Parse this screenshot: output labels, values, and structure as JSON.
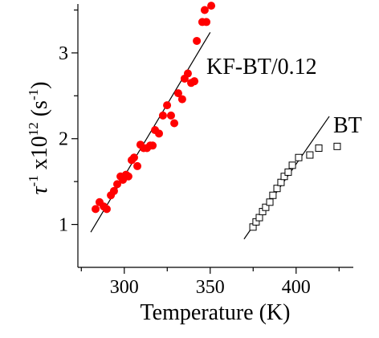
{
  "chart_data": {
    "type": "scatter",
    "x_label": "Temperature (K)",
    "y_label": [
      "τ",
      "-1",
      " x10",
      "12",
      " (s",
      "-1",
      ")"
    ],
    "xlim": [
      273,
      433
    ],
    "ylim": [
      0.5,
      3.57
    ],
    "xticks": [
      300,
      350,
      400
    ],
    "xminorticks": [
      275,
      325,
      375,
      425
    ],
    "yticks": [
      1,
      2,
      3
    ],
    "yminorticks": [
      1.5,
      2.5,
      3.5
    ],
    "series": [
      {
        "name": "KF-BT/0.12",
        "color": "#ff0000",
        "marker": "circle",
        "x": [
          283.3,
          285.6,
          288.0,
          289.8,
          292.2,
          294.0,
          295.9,
          297.8,
          299.2,
          301.0,
          302.4,
          304.3,
          305.7,
          307.6,
          309.4,
          311.3,
          313.2,
          315.1,
          316.5,
          317.9,
          320.2,
          322.5,
          324.9,
          327.2,
          329.1,
          331.4,
          333.7,
          335.1,
          337.0,
          338.9,
          340.8,
          342.2,
          345.4,
          346.8,
          347.8,
          350.6
        ],
        "values": [
          1.18,
          1.26,
          1.21,
          1.18,
          1.34,
          1.39,
          1.47,
          1.56,
          1.52,
          1.58,
          1.56,
          1.75,
          1.78,
          1.68,
          1.93,
          1.89,
          1.89,
          1.92,
          1.92,
          2.1,
          2.06,
          2.27,
          2.39,
          2.27,
          2.18,
          2.53,
          2.46,
          2.7,
          2.76,
          2.65,
          2.67,
          3.14,
          3.36,
          3.5,
          3.36,
          3.55
        ]
      },
      {
        "name": "BT",
        "color": "#000000",
        "marker": "square",
        "x": [
          374.9,
          376.7,
          378.6,
          380.5,
          382.3,
          384.7,
          386.5,
          388.9,
          391.2,
          393.1,
          395.4,
          397.8,
          401.5,
          408.0,
          413.2,
          423.9
        ],
        "values": [
          0.97,
          1.03,
          1.08,
          1.15,
          1.2,
          1.26,
          1.34,
          1.42,
          1.49,
          1.56,
          1.61,
          1.69,
          1.78,
          1.81,
          1.89,
          1.91
        ]
      }
    ],
    "fits": [
      {
        "color": "#000000",
        "x": [
          280.5,
          350.0
        ],
        "values": [
          0.91,
          3.24
        ]
      },
      {
        "color": "#000000",
        "x": [
          369.7,
          419.3
        ],
        "values": [
          0.83,
          2.26
        ]
      }
    ]
  }
}
